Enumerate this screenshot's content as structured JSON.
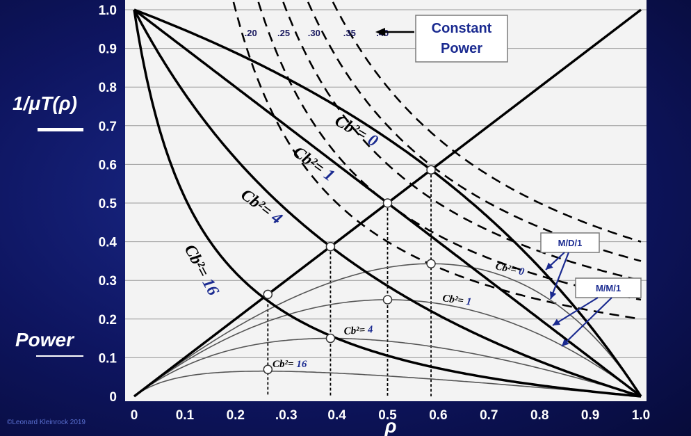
{
  "chart_data": {
    "type": "line",
    "title": "",
    "xlabel": "ρ",
    "ylabel_top": "1/μT(ρ)",
    "ylabel_bottom": "Power",
    "xlim": [
      0,
      1
    ],
    "ylim": [
      0,
      1
    ],
    "grid": "horizontal",
    "x_ticks": [
      "0",
      "0.1",
      "0.2",
      ".0.3",
      "0.4",
      "0.5",
      "0.6",
      "0.7",
      "0.8",
      "0.9",
      "1.0"
    ],
    "y_ticks": [
      "0",
      "0.1",
      "0.2",
      "0.3",
      "0.4",
      "0.5",
      "0.6",
      "0.7",
      "0.8",
      "0.9",
      "1.0"
    ],
    "throughput_curves": [
      {
        "name": "Cb²= 0",
        "cb2": 0
      },
      {
        "name": "Cb²= 1",
        "cb2": 1
      },
      {
        "name": "Cb²= 4",
        "cb2": 4
      },
      {
        "name": "Cb²= 16",
        "cb2": 16
      }
    ],
    "power_curves": [
      {
        "name": "Cb²= 0",
        "cb2": 0
      },
      {
        "name": "Cb²= 1",
        "cb2": 1
      },
      {
        "name": "Cb²= 4",
        "cb2": 4
      },
      {
        "name": "Cb²= 16",
        "cb2": 16
      }
    ],
    "diagonal_line": {
      "from": [
        0,
        0
      ],
      "to": [
        1,
        1
      ]
    },
    "optimal_points": [
      {
        "cb2": 0,
        "rho": 0.5858,
        "inv_delay": 0.5858,
        "power": 0.3431
      },
      {
        "cb2": 1,
        "rho": 0.5,
        "inv_delay": 0.5,
        "power": 0.25
      },
      {
        "cb2": 4,
        "rho": 0.3874,
        "inv_delay": 0.3874,
        "power": 0.1501
      },
      {
        "cb2": 16,
        "rho": 0.2638,
        "inv_delay": 0.2638,
        "power": 0.0696
      }
    ],
    "constant_power_levels": [
      0.2,
      0.25,
      0.3,
      0.35,
      0.4
    ],
    "constant_power_labels": [
      ".20",
      ".25",
      ".30",
      ".35",
      ".40"
    ],
    "annotations": {
      "constant_power": [
        "Constant",
        "Power"
      ],
      "md1": "M/D/1",
      "mm1": "M/M/1"
    },
    "credit": "©Leonard Kleinrock 2019"
  }
}
